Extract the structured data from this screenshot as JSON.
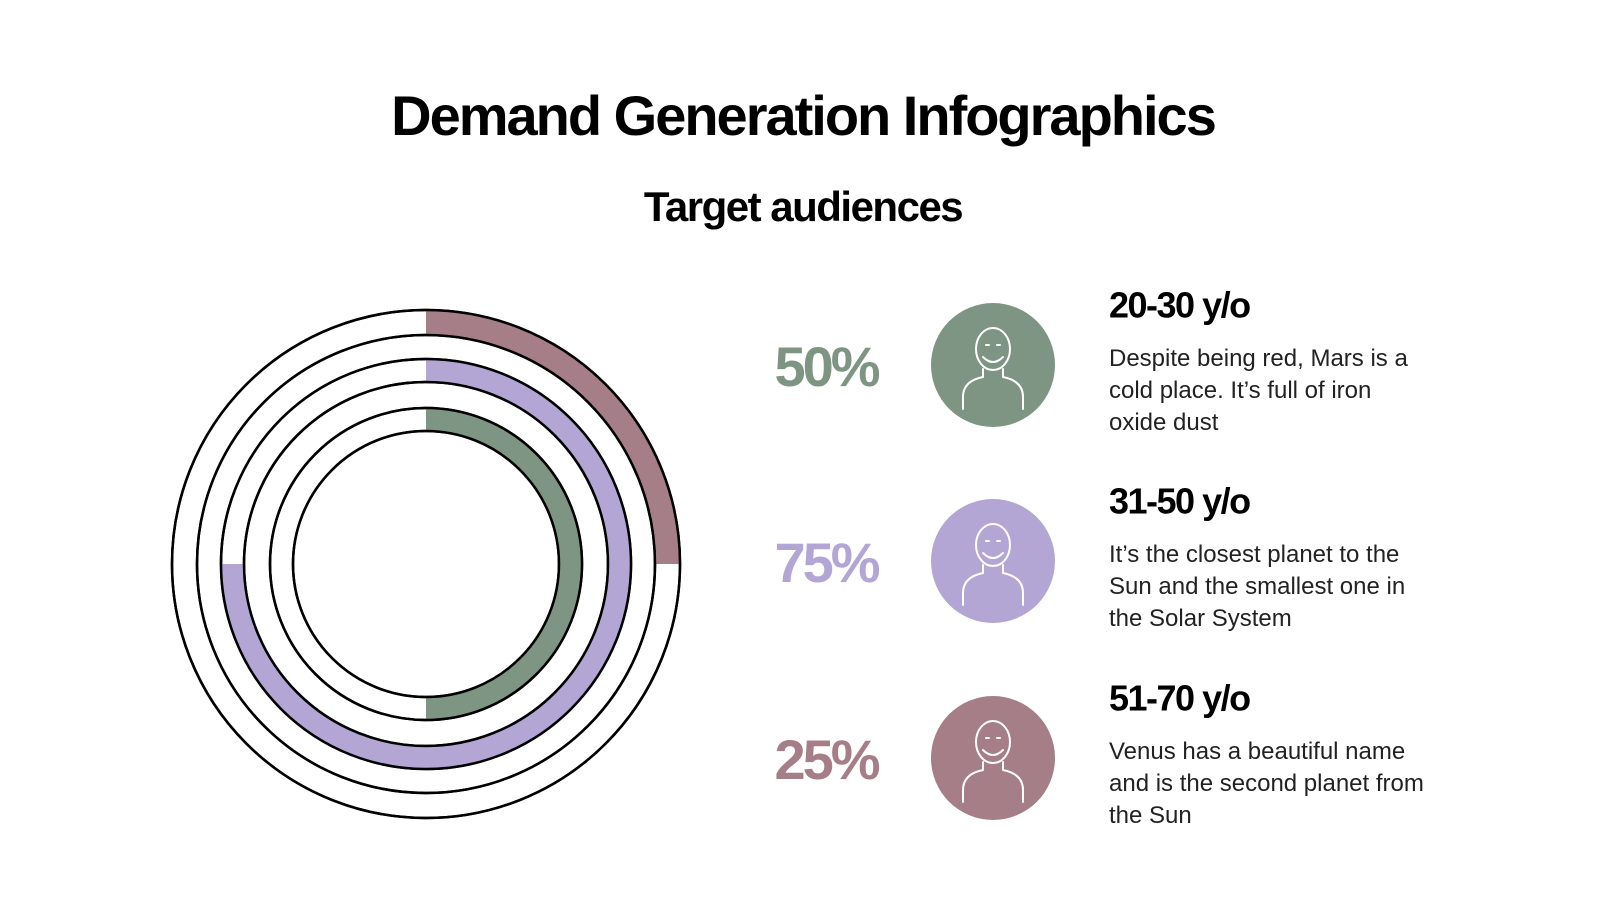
{
  "chart_data": {
    "type": "radial",
    "title": "Demand Generation Infographics",
    "subtitle": "Target audiences",
    "ylim": [
      0,
      100
    ],
    "categories": [
      "20-30 y/o",
      "31-50 y/o",
      "51-70 y/o"
    ],
    "values": [
      50,
      75,
      25
    ],
    "value_labels": [
      "50%",
      "75%",
      "25%"
    ],
    "colors": [
      "#7f9583",
      "#b3a6d5",
      "#a57e88"
    ],
    "descriptions": [
      "Despite being red, Mars is a cold place. It’s full of iron oxide dust",
      "It’s the closest planet to the Sun and the smallest one in the Solar System",
      "Venus has a beautiful name and is the second planet from the Sun"
    ]
  }
}
